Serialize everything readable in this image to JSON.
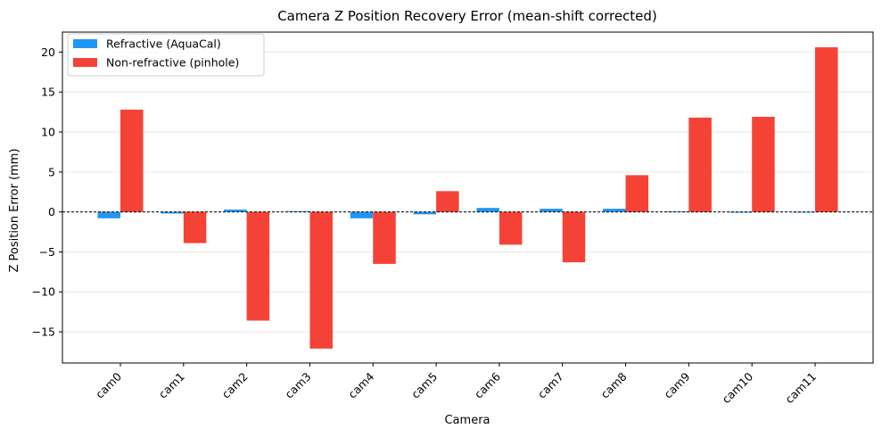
{
  "chart_data": {
    "type": "bar",
    "title": "Camera Z Position Recovery Error (mean-shift corrected)",
    "xlabel": "Camera",
    "ylabel": "Z Position Error (mm)",
    "categories": [
      "cam0",
      "cam1",
      "cam2",
      "cam3",
      "cam4",
      "cam5",
      "cam6",
      "cam7",
      "cam8",
      "cam9",
      "cam10",
      "cam11"
    ],
    "series": [
      {
        "name": "Refractive (AquaCal)",
        "color": "#2196F3",
        "values": [
          -0.8,
          -0.2,
          0.3,
          0.1,
          -0.8,
          -0.3,
          0.5,
          0.4,
          0.4,
          0.05,
          -0.1,
          0.0
        ]
      },
      {
        "name": "Non-refractive (pinhole)",
        "color": "#F44336",
        "values": [
          12.8,
          -3.9,
          -13.6,
          -17.1,
          -6.5,
          2.6,
          -4.1,
          -6.3,
          4.6,
          11.8,
          11.9,
          20.6
        ]
      }
    ],
    "ylim": [
      -18.9,
      22.5
    ],
    "yticks": [
      -15,
      -10,
      -5,
      0,
      5,
      10,
      15,
      20
    ],
    "grid": "y",
    "zero_line": "dashed",
    "legend_position": "top-left"
  }
}
